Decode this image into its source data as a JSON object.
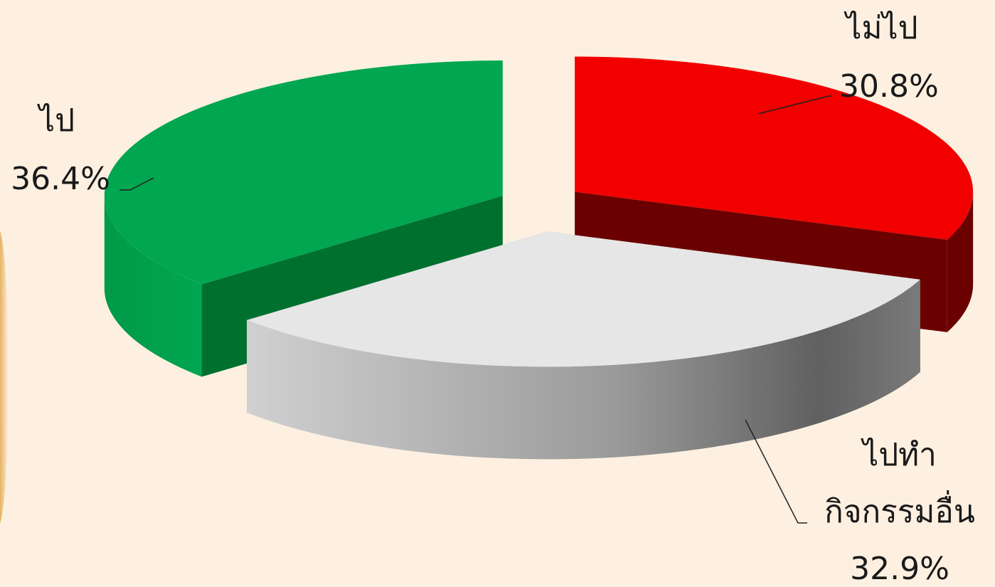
{
  "chart_data": {
    "type": "pie",
    "title": "",
    "slices": [
      {
        "label": "ไม่ไป",
        "value": 30.8,
        "value_label": "30.8%",
        "color": "#f20000",
        "side_color": "#6b0000"
      },
      {
        "label": "ไปทำ กิจกรรมอื่น",
        "label_lines": [
          "ไปทำ",
          "กิจกรรมอื่น"
        ],
        "value": 32.9,
        "value_label": "32.9%",
        "color": "#e6e6e6",
        "side_color": "#8a8a8a"
      },
      {
        "label": "ไป",
        "value": 36.4,
        "value_label": "36.4%",
        "color": "#00a650",
        "side_color": "#00702f"
      }
    ],
    "style": "3d-exploded",
    "legend": "none",
    "data_labels": "outside-with-leader-lines"
  },
  "colors": {
    "background": "#fdf0e1",
    "text": "#1a1a1a"
  }
}
